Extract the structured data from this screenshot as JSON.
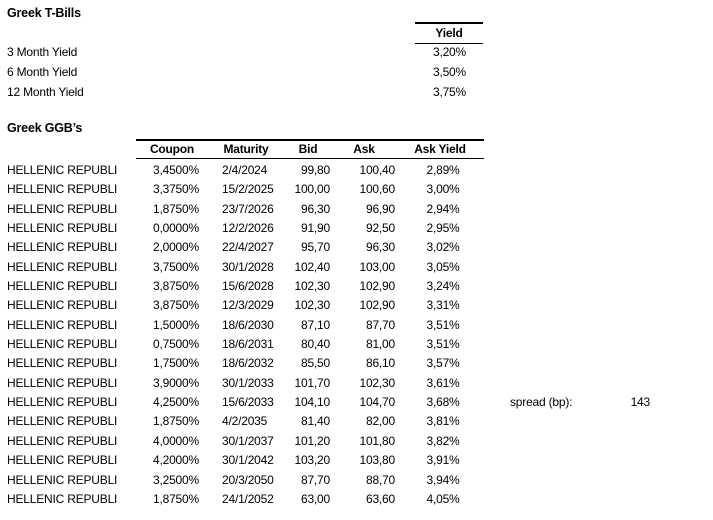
{
  "colors": {
    "text": "#000000",
    "background": "#ffffff",
    "rule": "#000000"
  },
  "tbills": {
    "title": "Greek T-Bills",
    "yield_header": "Yield",
    "rows": [
      {
        "label": "3 Month Yield",
        "yield": "3,20%"
      },
      {
        "label": "6 Month Yield",
        "yield": "3,50%"
      },
      {
        "label": "12 Month Yield",
        "yield": "3,75%"
      }
    ]
  },
  "ggbs": {
    "title": "Greek GGB’s",
    "headers": {
      "coupon": "Coupon",
      "maturity": "Maturity",
      "bid": "Bid",
      "ask": "Ask",
      "ask_yield": "Ask Yield"
    },
    "rows": [
      {
        "name": "HELLENIC REPUBLI",
        "coupon": "3,4500%",
        "maturity": "2/4/2024",
        "bid": "99,80",
        "ask": "100,40",
        "ask_yield": "2,89%"
      },
      {
        "name": "HELLENIC REPUBLI",
        "coupon": "3,3750%",
        "maturity": "15/2/2025",
        "bid": "100,00",
        "ask": "100,60",
        "ask_yield": "3,00%"
      },
      {
        "name": "HELLENIC REPUBLI",
        "coupon": "1,8750%",
        "maturity": "23/7/2026",
        "bid": "96,30",
        "ask": "96,90",
        "ask_yield": "2,94%"
      },
      {
        "name": "HELLENIC REPUBLI",
        "coupon": "0,0000%",
        "maturity": "12/2/2026",
        "bid": "91,90",
        "ask": "92,50",
        "ask_yield": "2,95%"
      },
      {
        "name": "HELLENIC REPUBLI",
        "coupon": "2,0000%",
        "maturity": "22/4/2027",
        "bid": "95,70",
        "ask": "96,30",
        "ask_yield": "3,02%"
      },
      {
        "name": "HELLENIC REPUBLI",
        "coupon": "3,7500%",
        "maturity": "30/1/2028",
        "bid": "102,40",
        "ask": "103,00",
        "ask_yield": "3,05%"
      },
      {
        "name": "HELLENIC REPUBLI",
        "coupon": "3,8750%",
        "maturity": "15/6/2028",
        "bid": "102,30",
        "ask": "102,90",
        "ask_yield": "3,24%"
      },
      {
        "name": "HELLENIC REPUBLI",
        "coupon": "3,8750%",
        "maturity": "12/3/2029",
        "bid": "102,30",
        "ask": "102,90",
        "ask_yield": "3,31%"
      },
      {
        "name": "HELLENIC REPUBLI",
        "coupon": "1,5000%",
        "maturity": "18/6/2030",
        "bid": "87,10",
        "ask": "87,70",
        "ask_yield": "3,51%"
      },
      {
        "name": "HELLENIC REPUBLI",
        "coupon": "0,7500%",
        "maturity": "18/6/2031",
        "bid": "80,40",
        "ask": "81,00",
        "ask_yield": "3,51%"
      },
      {
        "name": "HELLENIC REPUBLI",
        "coupon": "1,7500%",
        "maturity": "18/6/2032",
        "bid": "85,50",
        "ask": "86,10",
        "ask_yield": "3,57%"
      },
      {
        "name": "HELLENIC REPUBLI",
        "coupon": "3,9000%",
        "maturity": "30/1/2033",
        "bid": "101,70",
        "ask": "102,30",
        "ask_yield": "3,61%"
      },
      {
        "name": "HELLENIC REPUBLI",
        "coupon": "4,2500%",
        "maturity": "15/6/2033",
        "bid": "104,10",
        "ask": "104,70",
        "ask_yield": "3,68%"
      },
      {
        "name": "HELLENIC REPUBLI",
        "coupon": "1,8750%",
        "maturity": "4/2/2035",
        "bid": "81,40",
        "ask": "82,00",
        "ask_yield": "3,81%"
      },
      {
        "name": "HELLENIC REPUBLI",
        "coupon": "4,0000%",
        "maturity": "30/1/2037",
        "bid": "101,20",
        "ask": "101,80",
        "ask_yield": "3,82%"
      },
      {
        "name": "HELLENIC REPUBLI",
        "coupon": "4,2000%",
        "maturity": "30/1/2042",
        "bid": "103,20",
        "ask": "103,80",
        "ask_yield": "3,91%"
      },
      {
        "name": "HELLENIC REPUBLI",
        "coupon": "3,2500%",
        "maturity": "20/3/2050",
        "bid": "87,70",
        "ask": "88,70",
        "ask_yield": "3,94%"
      },
      {
        "name": "HELLENIC REPUBLI",
        "coupon": "1,8750%",
        "maturity": "24/1/2052",
        "bid": "63,00",
        "ask": "63,60",
        "ask_yield": "4,05%"
      }
    ]
  },
  "spread": {
    "label": "spread (bp):",
    "value": "143"
  }
}
